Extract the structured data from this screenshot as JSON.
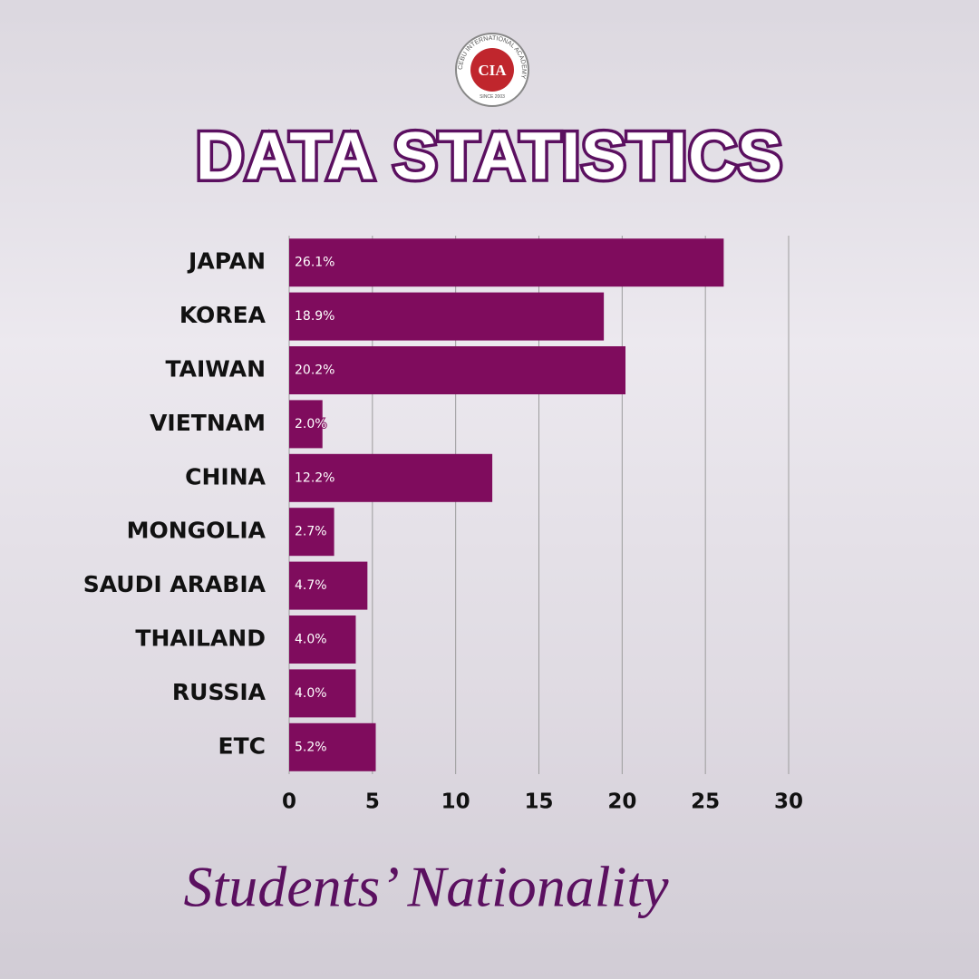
{
  "logo": {
    "text": "CIA",
    "ring": "CEBU INTERNATIONAL ACADEMY",
    "since": "SINCE 2003"
  },
  "chart_data": {
    "type": "bar",
    "orientation": "horizontal",
    "title": "DATA STATISTICS",
    "subtitle": "Students’ Nationality",
    "categories": [
      "JAPAN",
      "KOREA",
      "TAIWAN",
      "VIETNAM",
      "CHINA",
      "MONGOLIA",
      "SAUDI ARABIA",
      "THAILAND",
      "RUSSIA",
      "ETC"
    ],
    "values": [
      26.1,
      18.9,
      20.2,
      2.0,
      12.2,
      2.7,
      4.7,
      4.0,
      4.0,
      5.2
    ],
    "value_labels": [
      "26.1%",
      "18.9%",
      "20.2%",
      "2.0%",
      "12.2%",
      "2.7%",
      "4.7%",
      "4.0%",
      "4.0%",
      "5.2%"
    ],
    "color": "#7f0c5d",
    "xlim": [
      0,
      30
    ],
    "xticks": [
      0,
      5,
      10,
      15,
      20,
      25,
      30
    ],
    "grid": true
  }
}
